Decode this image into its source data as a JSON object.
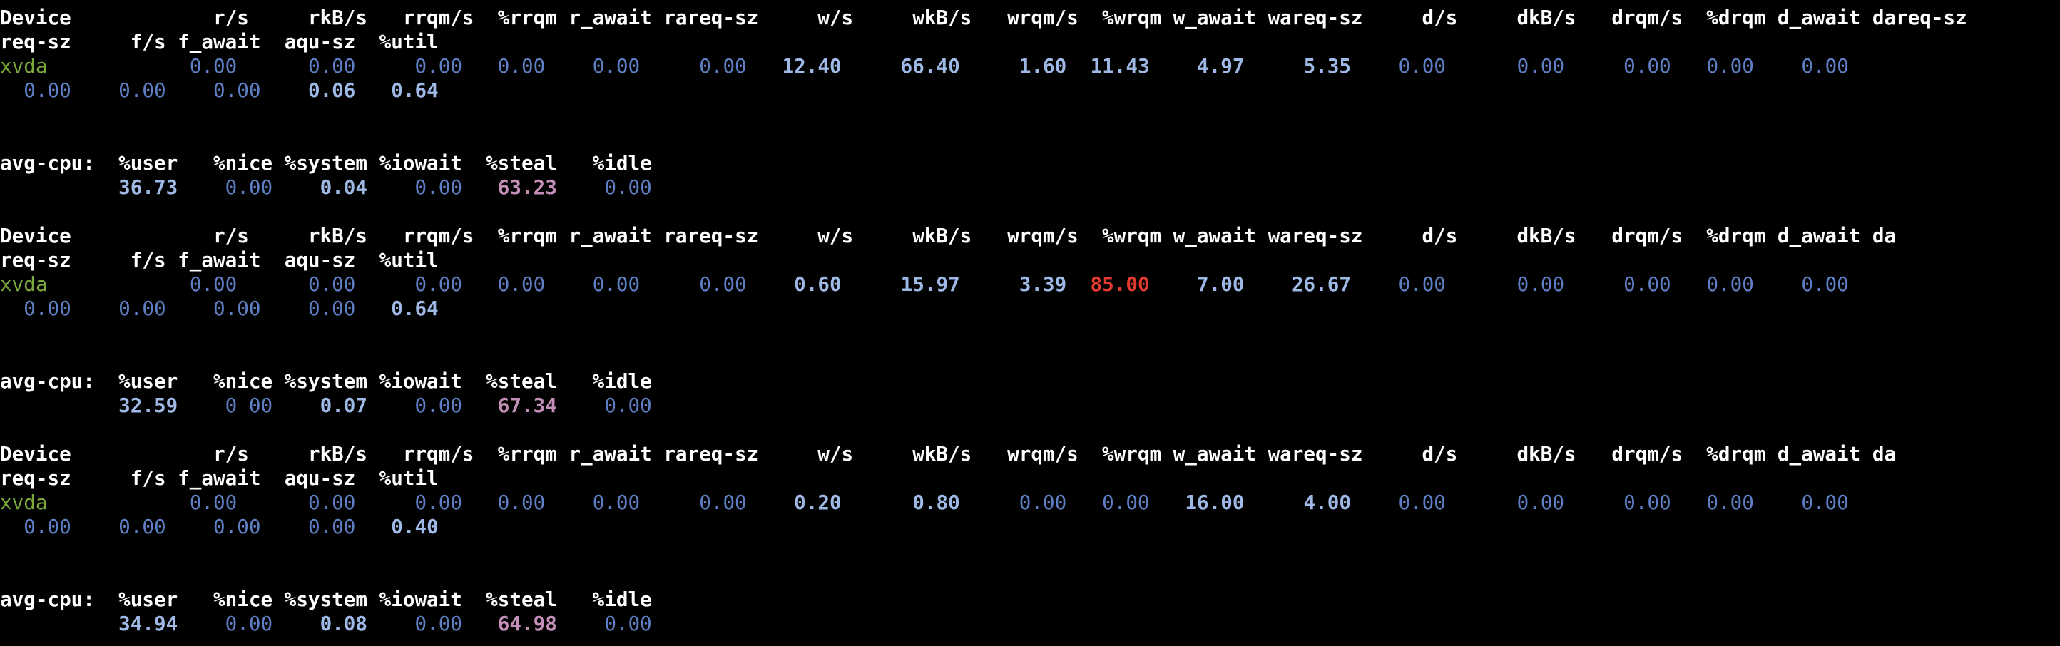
{
  "terminal": {
    "lines": [
      {
        "kind": "text",
        "text": "Device            r/s     rkB/s   rrqm/s  %rrqm r_await rareq-sz     w/s     wkB/s   wrqm/s  %wrqm w_await wareq-sz     d/s     dkB/s   drqm/s  %drqm d_await dareq-sz"
      },
      {
        "kind": "text",
        "text": "req-sz     f/s f_await  aqu-sz  %util"
      },
      {
        "kind": "cells",
        "cells": [
          {
            "t": "xvda",
            "s": "dev"
          },
          {
            "t": "            ",
            "s": ""
          },
          {
            "t": "0.00",
            "s": "dim"
          },
          {
            "t": "      ",
            "s": ""
          },
          {
            "t": "0.00",
            "s": "dim"
          },
          {
            "t": "     ",
            "s": ""
          },
          {
            "t": "0.00",
            "s": "dim"
          },
          {
            "t": "   ",
            "s": ""
          },
          {
            "t": "0.00",
            "s": "dim"
          },
          {
            "t": "    ",
            "s": ""
          },
          {
            "t": "0.00",
            "s": "dim"
          },
          {
            "t": "     ",
            "s": ""
          },
          {
            "t": "0.00",
            "s": "dim"
          },
          {
            "t": "   ",
            "s": ""
          },
          {
            "t": "12.40",
            "s": "bright"
          },
          {
            "t": "     ",
            "s": ""
          },
          {
            "t": "66.40",
            "s": "bright"
          },
          {
            "t": "     ",
            "s": ""
          },
          {
            "t": "1.60",
            "s": "bright"
          },
          {
            "t": "  ",
            "s": ""
          },
          {
            "t": "11.43",
            "s": "bright"
          },
          {
            "t": "    ",
            "s": ""
          },
          {
            "t": "4.97",
            "s": "bright"
          },
          {
            "t": "     ",
            "s": ""
          },
          {
            "t": "5.35",
            "s": "bright"
          },
          {
            "t": "    ",
            "s": ""
          },
          {
            "t": "0.00",
            "s": "dim"
          },
          {
            "t": "      ",
            "s": ""
          },
          {
            "t": "0.00",
            "s": "dim"
          },
          {
            "t": "     ",
            "s": ""
          },
          {
            "t": "0.00",
            "s": "dim"
          },
          {
            "t": "   ",
            "s": ""
          },
          {
            "t": "0.00",
            "s": "dim"
          },
          {
            "t": "    ",
            "s": ""
          },
          {
            "t": "0.00",
            "s": "dim"
          }
        ]
      },
      {
        "kind": "cells",
        "cells": [
          {
            "t": "  ",
            "s": ""
          },
          {
            "t": "0.00",
            "s": "dim"
          },
          {
            "t": "    ",
            "s": ""
          },
          {
            "t": "0.00",
            "s": "dim"
          },
          {
            "t": "    ",
            "s": ""
          },
          {
            "t": "0.00",
            "s": "dim"
          },
          {
            "t": "    ",
            "s": ""
          },
          {
            "t": "0.06",
            "s": "bright"
          },
          {
            "t": "   ",
            "s": ""
          },
          {
            "t": "0.64",
            "s": "bright"
          }
        ]
      },
      {
        "kind": "blank",
        "text": " "
      },
      {
        "kind": "blank",
        "text": " "
      },
      {
        "kind": "text",
        "text": "avg-cpu:  %user   %nice %system %iowait  %steal   %idle"
      },
      {
        "kind": "cells",
        "cells": [
          {
            "t": "          ",
            "s": ""
          },
          {
            "t": "36.73",
            "s": "bright"
          },
          {
            "t": "    ",
            "s": ""
          },
          {
            "t": "0.00",
            "s": "dim"
          },
          {
            "t": "    ",
            "s": ""
          },
          {
            "t": "0.04",
            "s": "bright"
          },
          {
            "t": "    ",
            "s": ""
          },
          {
            "t": "0.00",
            "s": "dim"
          },
          {
            "t": "   ",
            "s": ""
          },
          {
            "t": "63.23",
            "s": "steal"
          },
          {
            "t": "    ",
            "s": ""
          },
          {
            "t": "0.00",
            "s": "dim"
          }
        ]
      },
      {
        "kind": "blank",
        "text": " "
      },
      {
        "kind": "text",
        "text": "Device            r/s     rkB/s   rrqm/s  %rrqm r_await rareq-sz     w/s     wkB/s   wrqm/s  %wrqm w_await wareq-sz     d/s     dkB/s   drqm/s  %drqm d_await da"
      },
      {
        "kind": "text",
        "text": "req-sz     f/s f_await  aqu-sz  %util"
      },
      {
        "kind": "cells",
        "cells": [
          {
            "t": "xvda",
            "s": "dev"
          },
          {
            "t": "            ",
            "s": ""
          },
          {
            "t": "0.00",
            "s": "dim"
          },
          {
            "t": "      ",
            "s": ""
          },
          {
            "t": "0.00",
            "s": "dim"
          },
          {
            "t": "     ",
            "s": ""
          },
          {
            "t": "0.00",
            "s": "dim"
          },
          {
            "t": "   ",
            "s": ""
          },
          {
            "t": "0.00",
            "s": "dim"
          },
          {
            "t": "    ",
            "s": ""
          },
          {
            "t": "0.00",
            "s": "dim"
          },
          {
            "t": "     ",
            "s": ""
          },
          {
            "t": "0.00",
            "s": "dim"
          },
          {
            "t": "    ",
            "s": ""
          },
          {
            "t": "0.60",
            "s": "bright"
          },
          {
            "t": "     ",
            "s": ""
          },
          {
            "t": "15.97",
            "s": "bright"
          },
          {
            "t": "     ",
            "s": ""
          },
          {
            "t": "3.39",
            "s": "bright"
          },
          {
            "t": "  ",
            "s": ""
          },
          {
            "t": "85.00",
            "s": "red"
          },
          {
            "t": "    ",
            "s": ""
          },
          {
            "t": "7.00",
            "s": "bright"
          },
          {
            "t": "    ",
            "s": ""
          },
          {
            "t": "26.67",
            "s": "bright"
          },
          {
            "t": "    ",
            "s": ""
          },
          {
            "t": "0.00",
            "s": "dim"
          },
          {
            "t": "      ",
            "s": ""
          },
          {
            "t": "0.00",
            "s": "dim"
          },
          {
            "t": "     ",
            "s": ""
          },
          {
            "t": "0.00",
            "s": "dim"
          },
          {
            "t": "   ",
            "s": ""
          },
          {
            "t": "0.00",
            "s": "dim"
          },
          {
            "t": "    ",
            "s": ""
          },
          {
            "t": "0.00",
            "s": "dim"
          }
        ]
      },
      {
        "kind": "cells",
        "cells": [
          {
            "t": "  ",
            "s": ""
          },
          {
            "t": "0.00",
            "s": "dim"
          },
          {
            "t": "    ",
            "s": ""
          },
          {
            "t": "0.00",
            "s": "dim"
          },
          {
            "t": "    ",
            "s": ""
          },
          {
            "t": "0.00",
            "s": "dim"
          },
          {
            "t": "    ",
            "s": ""
          },
          {
            "t": "0.00",
            "s": "dim"
          },
          {
            "t": "   ",
            "s": ""
          },
          {
            "t": "0.64",
            "s": "bright"
          }
        ]
      },
      {
        "kind": "blank",
        "text": " "
      },
      {
        "kind": "blank",
        "text": " "
      },
      {
        "kind": "text",
        "text": "avg-cpu:  %user   %nice %system %iowait  %steal   %idle"
      },
      {
        "kind": "cells",
        "cells": [
          {
            "t": "          ",
            "s": ""
          },
          {
            "t": "32.59",
            "s": "bright"
          },
          {
            "t": "    ",
            "s": ""
          },
          {
            "t": "0 00",
            "s": "dim"
          },
          {
            "t": "    ",
            "s": ""
          },
          {
            "t": "0.07",
            "s": "bright"
          },
          {
            "t": "    ",
            "s": ""
          },
          {
            "t": "0.00",
            "s": "dim"
          },
          {
            "t": "   ",
            "s": ""
          },
          {
            "t": "67.34",
            "s": "steal"
          },
          {
            "t": "    ",
            "s": ""
          },
          {
            "t": "0.00",
            "s": "dim"
          }
        ]
      },
      {
        "kind": "blank",
        "text": " "
      },
      {
        "kind": "text",
        "text": "Device            r/s     rkB/s   rrqm/s  %rrqm r_await rareq-sz     w/s     wkB/s   wrqm/s  %wrqm w_await wareq-sz     d/s     dkB/s   drqm/s  %drqm d_await da"
      },
      {
        "kind": "text",
        "text": "req-sz     f/s f_await  aqu-sz  %util"
      },
      {
        "kind": "cells",
        "cells": [
          {
            "t": "xvda",
            "s": "dev"
          },
          {
            "t": "            ",
            "s": ""
          },
          {
            "t": "0.00",
            "s": "dim"
          },
          {
            "t": "      ",
            "s": ""
          },
          {
            "t": "0.00",
            "s": "dim"
          },
          {
            "t": "     ",
            "s": ""
          },
          {
            "t": "0.00",
            "s": "dim"
          },
          {
            "t": "   ",
            "s": ""
          },
          {
            "t": "0.00",
            "s": "dim"
          },
          {
            "t": "    ",
            "s": ""
          },
          {
            "t": "0.00",
            "s": "dim"
          },
          {
            "t": "     ",
            "s": ""
          },
          {
            "t": "0.00",
            "s": "dim"
          },
          {
            "t": "    ",
            "s": ""
          },
          {
            "t": "0.20",
            "s": "bright"
          },
          {
            "t": "      ",
            "s": ""
          },
          {
            "t": "0.80",
            "s": "bright"
          },
          {
            "t": "     ",
            "s": ""
          },
          {
            "t": "0.00",
            "s": "dim"
          },
          {
            "t": "   ",
            "s": ""
          },
          {
            "t": "0.00",
            "s": "dim"
          },
          {
            "t": "   ",
            "s": ""
          },
          {
            "t": "16.00",
            "s": "bright"
          },
          {
            "t": "     ",
            "s": ""
          },
          {
            "t": "4.00",
            "s": "bright"
          },
          {
            "t": "    ",
            "s": ""
          },
          {
            "t": "0.00",
            "s": "dim"
          },
          {
            "t": "      ",
            "s": ""
          },
          {
            "t": "0.00",
            "s": "dim"
          },
          {
            "t": "     ",
            "s": ""
          },
          {
            "t": "0.00",
            "s": "dim"
          },
          {
            "t": "   ",
            "s": ""
          },
          {
            "t": "0.00",
            "s": "dim"
          },
          {
            "t": "    ",
            "s": ""
          },
          {
            "t": "0.00",
            "s": "dim"
          }
        ]
      },
      {
        "kind": "cells",
        "cells": [
          {
            "t": "  ",
            "s": ""
          },
          {
            "t": "0.00",
            "s": "dim"
          },
          {
            "t": "    ",
            "s": ""
          },
          {
            "t": "0.00",
            "s": "dim"
          },
          {
            "t": "    ",
            "s": ""
          },
          {
            "t": "0.00",
            "s": "dim"
          },
          {
            "t": "    ",
            "s": ""
          },
          {
            "t": "0.00",
            "s": "dim"
          },
          {
            "t": "   ",
            "s": ""
          },
          {
            "t": "0.40",
            "s": "bright"
          }
        ]
      },
      {
        "kind": "blank",
        "text": " "
      },
      {
        "kind": "blank",
        "text": " "
      },
      {
        "kind": "text",
        "text": "avg-cpu:  %user   %nice %system %iowait  %steal   %idle"
      },
      {
        "kind": "cells",
        "cells": [
          {
            "t": "          ",
            "s": ""
          },
          {
            "t": "34.94",
            "s": "bright"
          },
          {
            "t": "    ",
            "s": ""
          },
          {
            "t": "0.00",
            "s": "dim"
          },
          {
            "t": "    ",
            "s": ""
          },
          {
            "t": "0.08",
            "s": "bright"
          },
          {
            "t": "    ",
            "s": ""
          },
          {
            "t": "0.00",
            "s": "dim"
          },
          {
            "t": "   ",
            "s": ""
          },
          {
            "t": "64.98",
            "s": "steal"
          },
          {
            "t": "    ",
            "s": ""
          },
          {
            "t": "0.00",
            "s": "dim"
          }
        ]
      }
    ]
  },
  "colors": {
    "background": "#000000",
    "header": "#ffffff",
    "device": "#7aa83a",
    "value_dim": "#5e7fc4",
    "value_bright": "#9fb9e6",
    "steal": "#c48fb8",
    "alert": "#e23a2e"
  }
}
